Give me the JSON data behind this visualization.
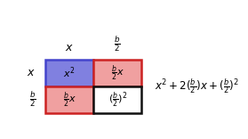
{
  "fig_width": 2.79,
  "fig_height": 1.56,
  "dpi": 100,
  "cell_colors": {
    "top_left": "#8080e0",
    "top_right": "#f0a0a0",
    "bottom_left": "#f0a0a0",
    "bottom_right": "#ffffff"
  },
  "top_left_border": "#4444cc",
  "top_right_border": "#cc2222",
  "bottom_left_border": "#cc2222",
  "bottom_right_border": "#111111",
  "cell_edge_width": 1.8,
  "top_left_label": "$x^2$",
  "top_right_label": "$\\frac{b}{2}x$",
  "bottom_left_label": "$\\frac{b}{2}x$",
  "bottom_right_label": "$(\\frac{b}{2})^2$",
  "col_labels": [
    "$x$",
    "$\\frac{b}{2}$"
  ],
  "row_labels": [
    "$x$",
    "$\\frac{b}{2}$"
  ],
  "formula": "$x^2+2(\\frac{b}{2})x+(\\frac{b}{2})^2$",
  "label_color": "#000000",
  "cell_text_color": "#000000",
  "formula_color": "#000000",
  "background_color": "#ffffff",
  "gl": 0.075,
  "gb": 0.1,
  "gs": 0.5,
  "col_label_fontsize": 9,
  "row_label_fontsize": 9,
  "cell_label_fontsize": 8,
  "formula_fontsize": 8.5
}
